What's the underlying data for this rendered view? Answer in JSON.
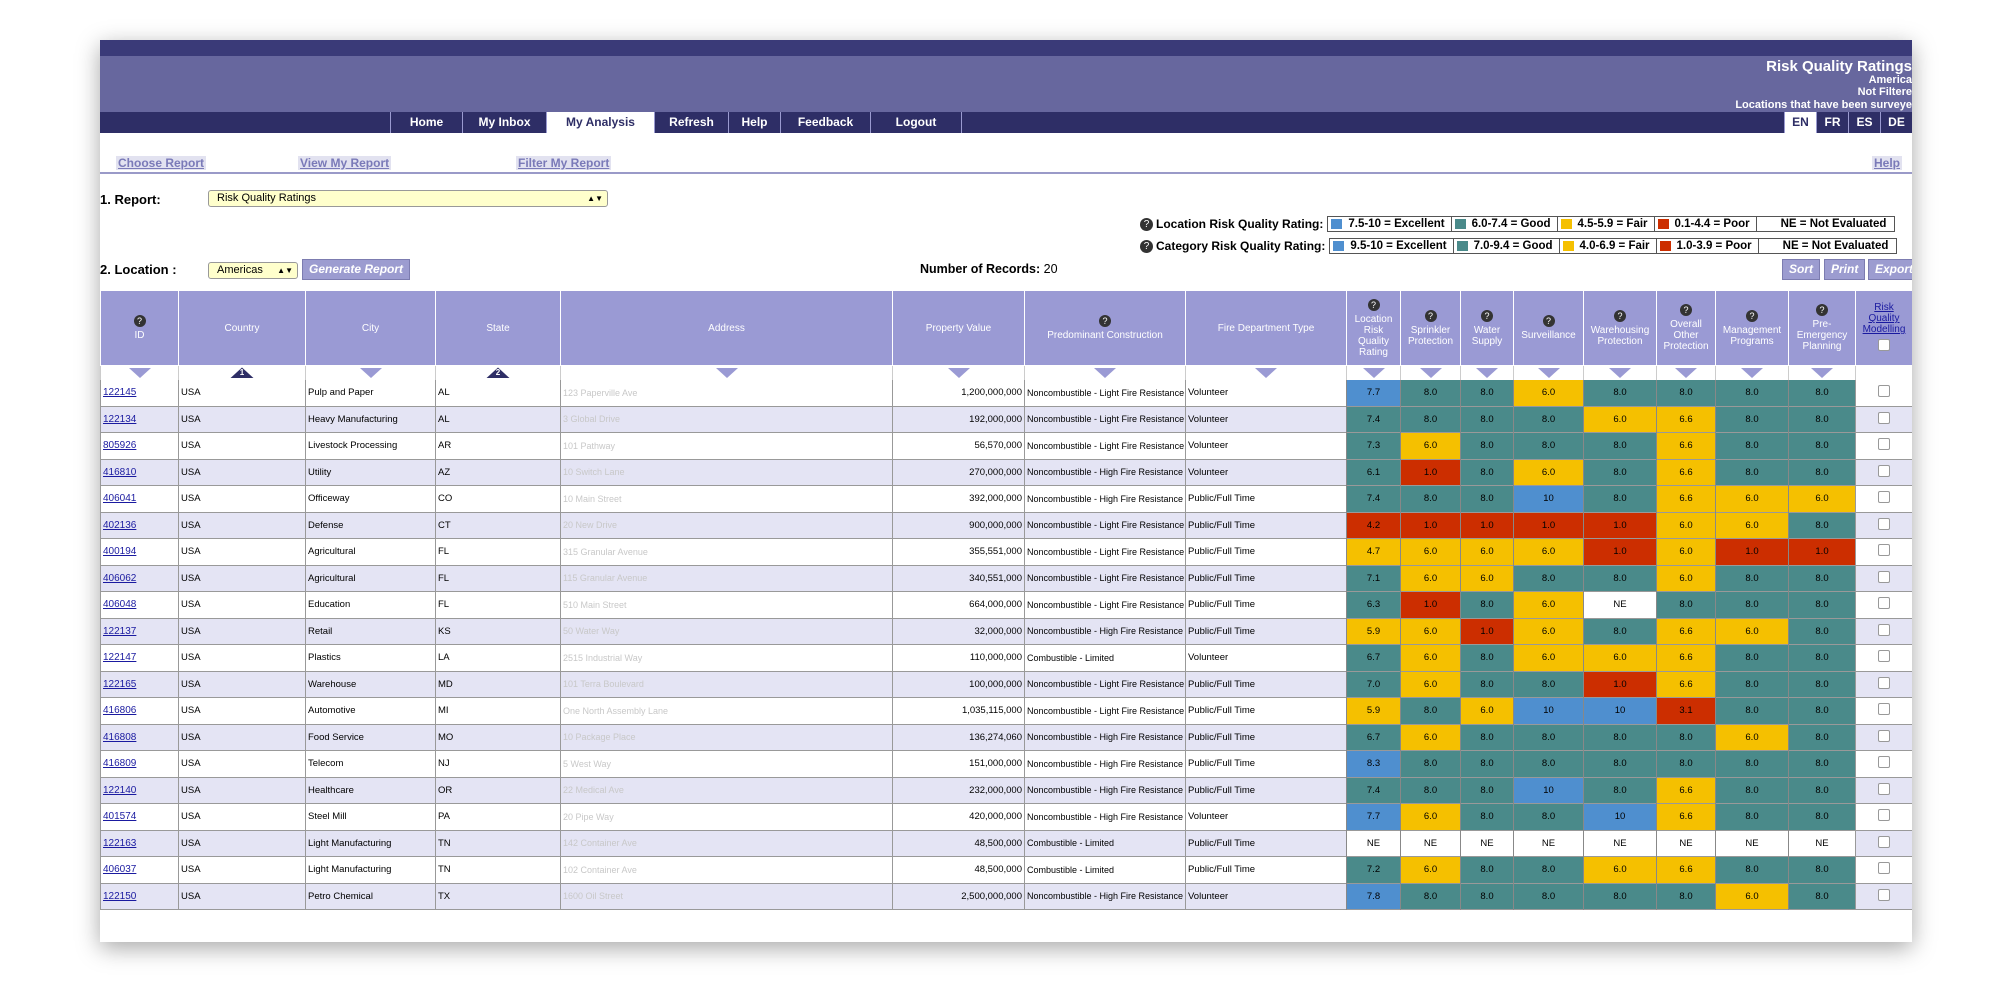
{
  "banner": {
    "title": "Risk Quality Ratings",
    "line2": "America",
    "line3": "Not Filtere",
    "line4": "Locations that have been surveye"
  },
  "nav": [
    "Home",
    "My Inbox",
    "My Analysis",
    "Refresh",
    "Help",
    "Feedback",
    "Logout"
  ],
  "languages": [
    "EN",
    "FR",
    "ES",
    "DE"
  ],
  "subnav": {
    "choose": "Choose Report",
    "view": "View My Report",
    "filter": "Filter My Report",
    "help": "Help"
  },
  "report": {
    "label": "1. Report:",
    "value": "Risk Quality Ratings"
  },
  "location": {
    "label": "2. Location :",
    "value": "Americas",
    "generate": "Generate Report"
  },
  "records": {
    "label": "Number of Records:",
    "count": "20"
  },
  "actions": {
    "sort": "Sort",
    "print": "Print",
    "export": "Export"
  },
  "legend_location": {
    "title": "Location Risk Quality Rating:",
    "items": [
      "7.5-10 = Excellent",
      "6.0-7.4 = Good",
      "4.5-5.9 = Fair",
      "0.1-4.4 = Poor",
      "NE = Not Evaluated"
    ]
  },
  "legend_category": {
    "title": "Category Risk Quality Rating:",
    "items": [
      "9.5-10 = Excellent",
      "7.0-9.4 = Good",
      "4.0-6.9 = Fair",
      "1.0-3.9 = Poor",
      "NE = Not Evaluated"
    ]
  },
  "colors": {
    "excellent": "#4f8fcf",
    "good": "#4a8a8a",
    "fair": "#f5c000",
    "poor": "#cc2e00",
    "header": "#9a9ad4",
    "nav": "#2e2e66"
  },
  "columns": {
    "id": "ID",
    "country": "Country",
    "city": "City",
    "state": "State",
    "address": "Address",
    "value": "Property Value",
    "construction": "Predominant Construction",
    "fire": "Fire Department Type",
    "lrqr": "Location Risk Quality Rating",
    "sprinkler": "Sprinkler Protection",
    "water": "Water Supply",
    "surveillance": "Surveillance",
    "warehousing": "Warehousing Protection",
    "overall": "Overall Other Protection",
    "management": "Management Programs",
    "preemergency": "Pre-Emergency Planning",
    "modelling": "Risk Quality Modelling"
  },
  "sort_order": {
    "country": "1",
    "state": "2"
  },
  "rows": [
    {
      "id": "122145",
      "country": "USA",
      "city": "Pulp and Paper",
      "state": "AL",
      "address": "123 Paperville Ave",
      "value": "1,200,000,000",
      "construction": "Noncombustible - Light Fire Resistance",
      "fire": "Volunteer",
      "ratings": [
        "7.7",
        "8.0",
        "8.0",
        "6.0",
        "8.0",
        "8.0",
        "8.0",
        "8.0"
      ],
      "grades": [
        "E",
        "G",
        "G",
        "F",
        "G",
        "G",
        "G",
        "G"
      ]
    },
    {
      "id": "122134",
      "country": "USA",
      "city": "Heavy Manufacturing",
      "state": "AL",
      "address": "3 Global Drive",
      "value": "192,000,000",
      "construction": "Noncombustible - Light Fire Resistance",
      "fire": "Volunteer",
      "ratings": [
        "7.4",
        "8.0",
        "8.0",
        "8.0",
        "6.0",
        "6.6",
        "8.0",
        "8.0"
      ],
      "grades": [
        "G",
        "G",
        "G",
        "G",
        "F",
        "F",
        "G",
        "G"
      ]
    },
    {
      "id": "805926",
      "country": "USA",
      "city": "Livestock Processing",
      "state": "AR",
      "address": "101 Pathway",
      "value": "56,570,000",
      "construction": "Noncombustible - Light Fire Resistance",
      "fire": "Volunteer",
      "ratings": [
        "7.3",
        "6.0",
        "8.0",
        "8.0",
        "8.0",
        "6.6",
        "8.0",
        "8.0"
      ],
      "grades": [
        "G",
        "F",
        "G",
        "G",
        "G",
        "F",
        "G",
        "G"
      ]
    },
    {
      "id": "416810",
      "country": "USA",
      "city": "Utility",
      "state": "AZ",
      "address": "10 Switch Lane",
      "value": "270,000,000",
      "construction": "Noncombustible - High Fire Resistance",
      "fire": "Volunteer",
      "ratings": [
        "6.1",
        "1.0",
        "8.0",
        "6.0",
        "8.0",
        "6.6",
        "8.0",
        "8.0"
      ],
      "grades": [
        "G",
        "P",
        "G",
        "F",
        "G",
        "F",
        "G",
        "G"
      ]
    },
    {
      "id": "406041",
      "country": "USA",
      "city": "Officeway",
      "state": "CO",
      "address": "10 Main Street",
      "value": "392,000,000",
      "construction": "Noncombustible - High Fire Resistance",
      "fire": "Public/Full Time",
      "ratings": [
        "7.4",
        "8.0",
        "8.0",
        "10",
        "8.0",
        "6.6",
        "6.0",
        "6.0"
      ],
      "grades": [
        "G",
        "G",
        "G",
        "E",
        "G",
        "F",
        "F",
        "F"
      ]
    },
    {
      "id": "402136",
      "country": "USA",
      "city": "Defense",
      "state": "CT",
      "address": "20 New Drive",
      "value": "900,000,000",
      "construction": "Noncombustible - Light Fire Resistance",
      "fire": "Public/Full Time",
      "ratings": [
        "4.2",
        "1.0",
        "1.0",
        "1.0",
        "1.0",
        "6.0",
        "6.0",
        "8.0"
      ],
      "grades": [
        "P",
        "P",
        "P",
        "P",
        "P",
        "F",
        "F",
        "G"
      ]
    },
    {
      "id": "400194",
      "country": "USA",
      "city": "Agricultural",
      "state": "FL",
      "address": "315 Granular Avenue",
      "value": "355,551,000",
      "construction": "Noncombustible - Light Fire Resistance",
      "fire": "Public/Full Time",
      "ratings": [
        "4.7",
        "6.0",
        "6.0",
        "6.0",
        "1.0",
        "6.0",
        "1.0",
        "1.0"
      ],
      "grades": [
        "F",
        "F",
        "F",
        "F",
        "P",
        "F",
        "P",
        "P"
      ]
    },
    {
      "id": "406062",
      "country": "USA",
      "city": "Agricultural",
      "state": "FL",
      "address": "115 Granular Avenue",
      "value": "340,551,000",
      "construction": "Noncombustible - Light Fire Resistance",
      "fire": "Public/Full Time",
      "ratings": [
        "7.1",
        "6.0",
        "6.0",
        "8.0",
        "8.0",
        "6.0",
        "8.0",
        "8.0"
      ],
      "grades": [
        "G",
        "F",
        "F",
        "G",
        "G",
        "F",
        "G",
        "G"
      ]
    },
    {
      "id": "406048",
      "country": "USA",
      "city": "Education",
      "state": "FL",
      "address": "510 Main Street",
      "value": "664,000,000",
      "construction": "Noncombustible - Light Fire Resistance",
      "fire": "Public/Full Time",
      "ratings": [
        "6.3",
        "1.0",
        "8.0",
        "6.0",
        "NE",
        "8.0",
        "8.0",
        "8.0"
      ],
      "grades": [
        "G",
        "P",
        "G",
        "F",
        "N",
        "G",
        "G",
        "G"
      ]
    },
    {
      "id": "122137",
      "country": "USA",
      "city": "Retail",
      "state": "KS",
      "address": "50 Water Way",
      "value": "32,000,000",
      "construction": "Noncombustible - High Fire Resistance",
      "fire": "Public/Full Time",
      "ratings": [
        "5.9",
        "6.0",
        "1.0",
        "6.0",
        "8.0",
        "6.6",
        "6.0",
        "8.0"
      ],
      "grades": [
        "F",
        "F",
        "P",
        "F",
        "G",
        "F",
        "F",
        "G"
      ]
    },
    {
      "id": "122147",
      "country": "USA",
      "city": "Plastics",
      "state": "LA",
      "address": "2515 Industrial Way",
      "value": "110,000,000",
      "construction": "Combustible - Limited",
      "fire": "Volunteer",
      "ratings": [
        "6.7",
        "6.0",
        "8.0",
        "6.0",
        "6.0",
        "6.6",
        "8.0",
        "8.0"
      ],
      "grades": [
        "G",
        "F",
        "G",
        "F",
        "F",
        "F",
        "G",
        "G"
      ]
    },
    {
      "id": "122165",
      "country": "USA",
      "city": "Warehouse",
      "state": "MD",
      "address": "101 Terra Boulevard",
      "value": "100,000,000",
      "construction": "Noncombustible - Light Fire Resistance",
      "fire": "Public/Full Time",
      "ratings": [
        "7.0",
        "6.0",
        "8.0",
        "8.0",
        "1.0",
        "6.6",
        "8.0",
        "8.0"
      ],
      "grades": [
        "G",
        "F",
        "G",
        "G",
        "P",
        "F",
        "G",
        "G"
      ]
    },
    {
      "id": "416806",
      "country": "USA",
      "city": "Automotive",
      "state": "MI",
      "address": "One North Assembly Lane",
      "value": "1,035,115,000",
      "construction": "Noncombustible - Light Fire Resistance",
      "fire": "Public/Full Time",
      "ratings": [
        "5.9",
        "8.0",
        "6.0",
        "10",
        "10",
        "3.1",
        "8.0",
        "8.0"
      ],
      "grades": [
        "F",
        "G",
        "F",
        "E",
        "E",
        "P",
        "G",
        "G"
      ]
    },
    {
      "id": "416808",
      "country": "USA",
      "city": "Food Service",
      "state": "MO",
      "address": "10 Package Place",
      "value": "136,274,060",
      "construction": "Noncombustible - High Fire Resistance",
      "fire": "Public/Full Time",
      "ratings": [
        "6.7",
        "6.0",
        "8.0",
        "8.0",
        "8.0",
        "8.0",
        "6.0",
        "8.0"
      ],
      "grades": [
        "G",
        "F",
        "G",
        "G",
        "G",
        "G",
        "F",
        "G"
      ]
    },
    {
      "id": "416809",
      "country": "USA",
      "city": "Telecom",
      "state": "NJ",
      "address": "5 West Way",
      "value": "151,000,000",
      "construction": "Noncombustible - High Fire Resistance",
      "fire": "Public/Full Time",
      "ratings": [
        "8.3",
        "8.0",
        "8.0",
        "8.0",
        "8.0",
        "8.0",
        "8.0",
        "8.0"
      ],
      "grades": [
        "E",
        "G",
        "G",
        "G",
        "G",
        "G",
        "G",
        "G"
      ]
    },
    {
      "id": "122140",
      "country": "USA",
      "city": "Healthcare",
      "state": "OR",
      "address": "22 Medical Ave",
      "value": "232,000,000",
      "construction": "Noncombustible - High Fire Resistance",
      "fire": "Public/Full Time",
      "ratings": [
        "7.4",
        "8.0",
        "8.0",
        "10",
        "8.0",
        "6.6",
        "8.0",
        "8.0"
      ],
      "grades": [
        "G",
        "G",
        "G",
        "E",
        "G",
        "F",
        "G",
        "G"
      ]
    },
    {
      "id": "401574",
      "country": "USA",
      "city": "Steel Mill",
      "state": "PA",
      "address": "20 Pipe Way",
      "value": "420,000,000",
      "construction": "Noncombustible - High Fire Resistance",
      "fire": "Volunteer",
      "ratings": [
        "7.7",
        "6.0",
        "8.0",
        "8.0",
        "10",
        "6.6",
        "8.0",
        "8.0"
      ],
      "grades": [
        "E",
        "F",
        "G",
        "G",
        "E",
        "F",
        "G",
        "G"
      ]
    },
    {
      "id": "122163",
      "country": "USA",
      "city": "Light Manufacturing",
      "state": "TN",
      "address": "142 Container Ave",
      "value": "48,500,000",
      "construction": "Combustible - Limited",
      "fire": "Public/Full Time",
      "ratings": [
        "NE",
        "NE",
        "NE",
        "NE",
        "NE",
        "NE",
        "NE",
        "NE"
      ],
      "grades": [
        "N",
        "N",
        "N",
        "N",
        "N",
        "N",
        "N",
        "N"
      ]
    },
    {
      "id": "406037",
      "country": "USA",
      "city": "Light Manufacturing",
      "state": "TN",
      "address": "102 Container Ave",
      "value": "48,500,000",
      "construction": "Combustible - Limited",
      "fire": "Public/Full Time",
      "ratings": [
        "7.2",
        "6.0",
        "8.0",
        "8.0",
        "6.0",
        "6.6",
        "8.0",
        "8.0"
      ],
      "grades": [
        "G",
        "F",
        "G",
        "G",
        "F",
        "F",
        "G",
        "G"
      ]
    },
    {
      "id": "122150",
      "country": "USA",
      "city": "Petro Chemical",
      "state": "TX",
      "address": "1600 Oil Street",
      "value": "2,500,000,000",
      "construction": "Noncombustible - High Fire Resistance",
      "fire": "Volunteer",
      "ratings": [
        "7.8",
        "8.0",
        "8.0",
        "8.0",
        "8.0",
        "8.0",
        "6.0",
        "8.0"
      ],
      "grades": [
        "E",
        "G",
        "G",
        "G",
        "G",
        "G",
        "F",
        "G"
      ]
    }
  ]
}
